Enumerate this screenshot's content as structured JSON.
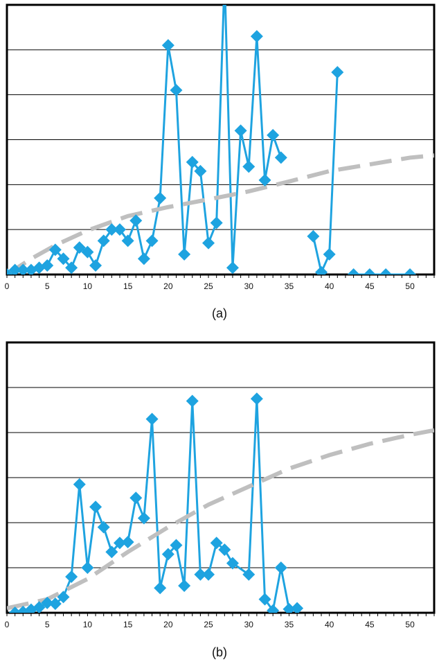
{
  "colors": {
    "series": "#1ea3e0",
    "trend": "#bfbfbf",
    "grid": "#000000",
    "axis": "#000000"
  },
  "chart_data": [
    {
      "type": "line",
      "caption": "(a)",
      "xlim": [
        0,
        53
      ],
      "ylim": [
        0,
        6
      ],
      "xticks": [
        "0",
        "5",
        "10",
        "15",
        "20",
        "25",
        "30",
        "35",
        "40",
        "45",
        "50"
      ],
      "xtick_values": [
        0,
        5,
        10,
        15,
        20,
        25,
        30,
        35,
        40,
        45,
        50
      ],
      "grid": "horizontal",
      "y_gridlines": [
        1,
        2,
        3,
        4,
        5
      ],
      "y_tick_labels": false,
      "series": [
        {
          "style": "line-diamond",
          "segments": [
            [
              [
                0,
                0.0
              ],
              [
                1,
                0.1
              ],
              [
                2,
                0.1
              ],
              [
                3,
                0.1
              ],
              [
                4,
                0.15
              ],
              [
                5,
                0.2
              ],
              [
                6,
                0.55
              ],
              [
                7,
                0.35
              ],
              [
                8,
                0.15
              ],
              [
                9,
                0.6
              ],
              [
                10,
                0.5
              ],
              [
                11,
                0.2
              ],
              [
                12,
                0.75
              ],
              [
                13,
                1.0
              ],
              [
                14,
                1.0
              ],
              [
                15,
                0.75
              ],
              [
                16,
                1.2
              ],
              [
                17,
                0.35
              ],
              [
                18,
                0.75
              ],
              [
                19,
                1.7
              ],
              [
                20,
                5.1
              ],
              [
                21,
                4.1
              ],
              [
                22,
                0.45
              ],
              [
                23,
                2.5
              ],
              [
                24,
                2.3
              ],
              [
                25,
                0.7
              ],
              [
                26,
                1.15
              ],
              [
                27,
                6.6
              ],
              [
                28,
                0.15
              ],
              [
                29,
                3.2
              ],
              [
                30,
                2.4
              ],
              [
                31,
                5.3
              ],
              [
                32,
                2.1
              ],
              [
                33,
                3.1
              ],
              [
                34,
                2.6
              ]
            ],
            [
              [
                38,
                0.85
              ],
              [
                39,
                0.05
              ],
              [
                40,
                0.45
              ],
              [
                41,
                4.5
              ]
            ],
            [
              [
                43,
                0
              ],
              [
                45,
                0
              ],
              [
                47,
                0
              ],
              [
                50,
                0
              ]
            ]
          ]
        },
        {
          "style": "trend-dashed",
          "segments": [
            [
              [
                0,
                0.0
              ],
              [
                3,
                0.35
              ],
              [
                6,
                0.65
              ],
              [
                10,
                0.98
              ],
              [
                15,
                1.3
              ],
              [
                20,
                1.5
              ],
              [
                25,
                1.67
              ],
              [
                30,
                1.85
              ],
              [
                35,
                2.07
              ],
              [
                40,
                2.3
              ],
              [
                45,
                2.45
              ],
              [
                50,
                2.6
              ],
              [
                53,
                2.65
              ]
            ]
          ]
        }
      ]
    },
    {
      "type": "line",
      "caption": "(b)",
      "xlim": [
        0,
        53
      ],
      "ylim": [
        0,
        6
      ],
      "xticks": [
        "0",
        "5",
        "10",
        "15",
        "20",
        "25",
        "30",
        "35",
        "40",
        "45",
        "50"
      ],
      "xtick_values": [
        0,
        5,
        10,
        15,
        20,
        25,
        30,
        35,
        40,
        45,
        50
      ],
      "grid": "horizontal",
      "y_gridlines": [
        1,
        2,
        3,
        4,
        5
      ],
      "y_tick_labels": false,
      "series": [
        {
          "style": "line-diamond",
          "segments": [
            [
              [
                1,
                0.0
              ],
              [
                2,
                0.02
              ],
              [
                3,
                0.07
              ],
              [
                4,
                0.12
              ],
              [
                5,
                0.22
              ],
              [
                6,
                0.2
              ],
              [
                7,
                0.35
              ],
              [
                8,
                0.8
              ],
              [
                9,
                2.85
              ],
              [
                10,
                1.0
              ],
              [
                11,
                2.35
              ],
              [
                12,
                1.9
              ],
              [
                13,
                1.35
              ],
              [
                14,
                1.55
              ],
              [
                15,
                1.57
              ],
              [
                16,
                2.55
              ],
              [
                17,
                2.1
              ],
              [
                18,
                4.3
              ],
              [
                19,
                0.55
              ],
              [
                20,
                1.3
              ],
              [
                21,
                1.5
              ],
              [
                22,
                0.6
              ],
              [
                23,
                4.7
              ],
              [
                24,
                0.85
              ],
              [
                25,
                0.85
              ],
              [
                26,
                1.55
              ],
              [
                27,
                1.4
              ],
              [
                28,
                1.1
              ],
              [
                30,
                0.85
              ],
              [
                31,
                4.75
              ],
              [
                32,
                0.3
              ],
              [
                33,
                0.05
              ],
              [
                34,
                1.0
              ],
              [
                35,
                0.08
              ],
              [
                36,
                0.1
              ]
            ]
          ]
        },
        {
          "style": "trend-dashed",
          "segments": [
            [
              [
                0,
                0.1
              ],
              [
                5,
                0.3
              ],
              [
                10,
                0.75
              ],
              [
                15,
                1.35
              ],
              [
                20,
                1.9
              ],
              [
                25,
                2.4
              ],
              [
                30,
                2.8
              ],
              [
                35,
                3.2
              ],
              [
                40,
                3.5
              ],
              [
                45,
                3.75
              ],
              [
                50,
                3.95
              ],
              [
                53,
                4.05
              ]
            ]
          ]
        }
      ]
    }
  ]
}
